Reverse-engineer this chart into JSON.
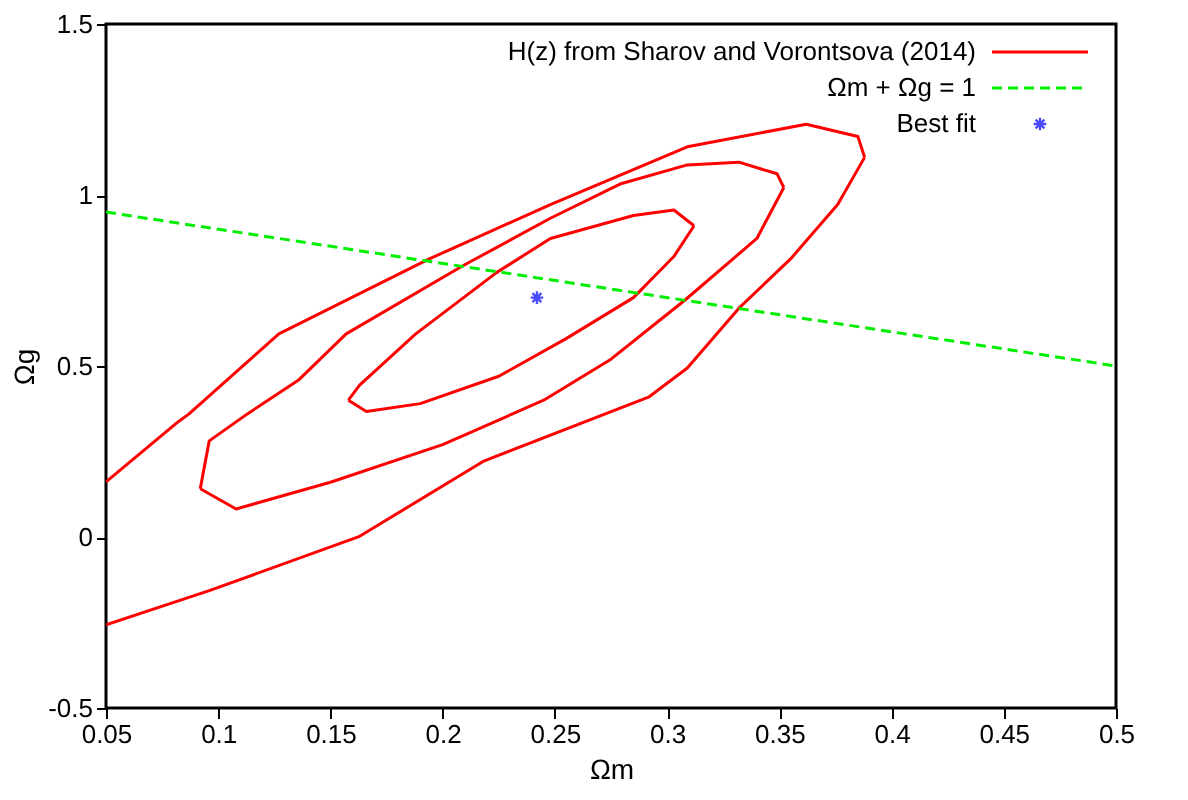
{
  "chart_data": {
    "type": "line",
    "xlabel": "Ωm",
    "ylabel": "Ωg",
    "xlim": [
      0.05,
      0.5
    ],
    "xticks": [
      0.05,
      0.1,
      0.15,
      0.2,
      0.25,
      0.3,
      0.35,
      0.4,
      0.45,
      0.5
    ],
    "ylim": [
      -0.5,
      1.5
    ],
    "yticks": [
      -0.5,
      0,
      0.5,
      1,
      1.5
    ],
    "grid": false,
    "legend": "top right",
    "series": [
      {
        "name": "H(z) from Sharov and Vorontsova (2014)",
        "color": "#ff0000",
        "line_style": "solid",
        "x": [
          0.158,
          0.163,
          0.188,
          0.224,
          0.248,
          0.285,
          0.303,
          0.312
        ],
        "values": [
          0.4,
          0.444,
          0.594,
          0.773,
          0.873,
          0.94,
          0.956,
          0.91
        ]
      },
      {
        "color": "#ff0000",
        "line_style": "solid",
        "x": [
          0.158,
          0.166,
          0.19,
          0.225,
          0.255,
          0.285,
          0.303,
          0.312
        ],
        "values": [
          0.4,
          0.367,
          0.39,
          0.47,
          0.58,
          0.7,
          0.82,
          0.91
        ]
      },
      {
        "color": "#ff0000",
        "line_style": "solid",
        "x": [
          0.092,
          0.096,
          0.113,
          0.136,
          0.157,
          0.209,
          0.248,
          0.279,
          0.309,
          0.332,
          0.349,
          0.352
        ],
        "values": [
          0.141,
          0.281,
          0.36,
          0.46,
          0.594,
          0.793,
          0.932,
          1.032,
          1.088,
          1.096,
          1.062,
          1.022
        ]
      },
      {
        "color": "#ff0000",
        "line_style": "solid",
        "x": [
          0.092,
          0.108,
          0.15,
          0.2,
          0.245,
          0.275,
          0.308,
          0.34,
          0.352
        ],
        "values": [
          0.141,
          0.082,
          0.16,
          0.27,
          0.4,
          0.52,
          0.693,
          0.873,
          1.022
        ]
      },
      {
        "color": "#ff0000",
        "line_style": "solid",
        "x": [
          0.05,
          0.081,
          0.087,
          0.127,
          0.194,
          0.248,
          0.309,
          0.362,
          0.385,
          0.388
        ],
        "values": [
          0.161,
          0.331,
          0.36,
          0.594,
          0.813,
          0.972,
          1.141,
          1.207,
          1.171,
          1.11
        ]
      },
      {
        "color": "#ff0000",
        "line_style": "solid",
        "x": [
          0.05,
          0.096,
          0.163,
          0.218,
          0.292,
          0.309,
          0.332,
          0.355,
          0.376,
          0.388
        ],
        "values": [
          -0.257,
          -0.157,
          0.002,
          0.221,
          0.41,
          0.494,
          0.669,
          0.813,
          0.972,
          1.11
        ]
      },
      {
        "name": "Ωm + Ωg = 1",
        "color": "#00ee00",
        "line_style": "dashed",
        "x": [
          0.05,
          0.5
        ],
        "values": [
          0.95,
          0.5
        ]
      },
      {
        "name": "Best fit",
        "type": "scatter",
        "color": "#0000ff",
        "marker": "cross",
        "x": [
          0.242
        ],
        "values": [
          0.7
        ]
      }
    ]
  }
}
